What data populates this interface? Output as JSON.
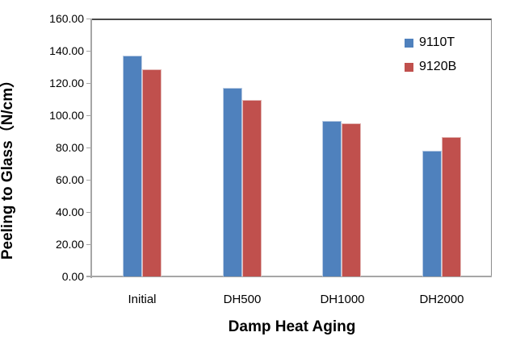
{
  "chart_data": {
    "type": "bar",
    "title": "",
    "xlabel": "Damp Heat Aging",
    "ylabel": "Peeling to Glass（N/cm）",
    "categories": [
      "Initial",
      "DH500",
      "DH1000",
      "DH2000"
    ],
    "series": [
      {
        "name": "9110T",
        "color": "#4F81BD",
        "border_color": "#B9CBE3",
        "values": [
          137,
          117,
          96.5,
          78
        ]
      },
      {
        "name": "9120B",
        "color": "#C0504D",
        "border_color": "#E3B8B6",
        "values": [
          128.5,
          109.5,
          95,
          86.5
        ]
      }
    ],
    "ylim": [
      0,
      160
    ],
    "y_tick_step": 20,
    "y_tick_labels": [
      "0.00",
      "20.00",
      "40.00",
      "60.00",
      "80.00",
      "100.00",
      "120.00",
      "140.00",
      "160.00"
    ],
    "grid": false,
    "legend_position": "top-right-inside"
  },
  "colors": {
    "background": "#FFFFFF",
    "axis_line": "#A6A6A6",
    "plot_border_top": "#494949",
    "plot_border_right": "#8C8C8C",
    "text": "#000000"
  }
}
